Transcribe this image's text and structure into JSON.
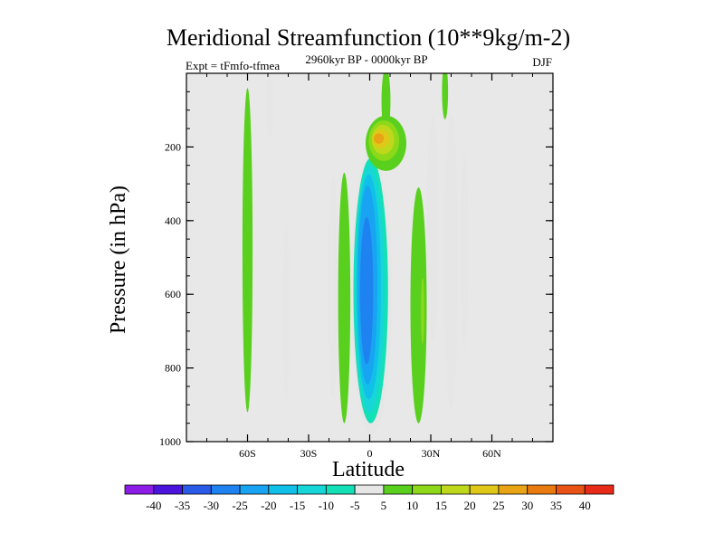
{
  "chart_data": {
    "type": "contour",
    "title": "Meridional Streamfunction (10**9kg/m-2)",
    "subtitle_left": "Expt = tFmfo-tfmea",
    "subtitle_center": "2960kyr BP - 0000kyr BP",
    "subtitle_right": "DJF",
    "xlabel": "Latitude",
    "ylabel": "Pressure (in hPa)",
    "xlim": [
      -90,
      90
    ],
    "ylim": [
      0,
      1000
    ],
    "y_inverted": true,
    "x_ticks": [
      {
        "value": -60,
        "label": "60S"
      },
      {
        "value": -30,
        "label": "30S"
      },
      {
        "value": 0,
        "label": "0"
      },
      {
        "value": 30,
        "label": "30N"
      },
      {
        "value": 60,
        "label": "60N"
      }
    ],
    "y_ticks": [
      {
        "value": 200,
        "label": "200"
      },
      {
        "value": 400,
        "label": "400"
      },
      {
        "value": 600,
        "label": "600"
      },
      {
        "value": 800,
        "label": "800"
      },
      {
        "value": 1000,
        "label": "1000"
      }
    ],
    "background_color": "#e8e8e8",
    "colorbar": {
      "levels": [
        "-40",
        "-35",
        "-30",
        "-25",
        "-20",
        "-15",
        "-10",
        "-5",
        "5",
        "10",
        "15",
        "20",
        "25",
        "30",
        "35",
        "40"
      ],
      "colors": [
        "#8c1ce6",
        "#4a14dc",
        "#2a5ae8",
        "#1e82f0",
        "#18a4f2",
        "#10c0e8",
        "#16d6d8",
        "#14e0b8",
        "#e6e6e6",
        "#5ad01e",
        "#8ed81a",
        "#c0d81c",
        "#e0c818",
        "#e8a414",
        "#e87a10",
        "#e85214",
        "#e82a18"
      ]
    },
    "regions": [
      {
        "name": "band-60s-positive",
        "value": 5,
        "cx": -60,
        "cy": 480,
        "rx": 2.5,
        "ry": 440
      },
      {
        "name": "band-48s-negative-upper",
        "value": -5,
        "cx": -49,
        "cy": 90,
        "rx": 2,
        "ry": 85
      },
      {
        "name": "band-40s-negative",
        "value": -5,
        "cx": -41,
        "cy": 650,
        "rx": 1.5,
        "ry": 235
      },
      {
        "name": "band-20s-negative",
        "value": -5,
        "cx": -18,
        "cy": 580,
        "rx": 2.5,
        "ry": 300
      },
      {
        "name": "band-13s-positive",
        "value": 5,
        "cx": -12.5,
        "cy": 610,
        "rx": 3,
        "ry": 340
      },
      {
        "name": "core-5",
        "value": -5,
        "cx": 1,
        "cy": 595,
        "rx": 10,
        "ry": 385
      },
      {
        "name": "core-10",
        "value": -10,
        "cx": 0.5,
        "cy": 590,
        "rx": 8.5,
        "ry": 360
      },
      {
        "name": "core-15",
        "value": -15,
        "cx": 0,
        "cy": 585,
        "rx": 7.2,
        "ry": 335
      },
      {
        "name": "core-20",
        "value": -20,
        "cx": -0.5,
        "cy": 580,
        "rx": 6,
        "ry": 305
      },
      {
        "name": "core-25",
        "value": -25,
        "cx": -1,
        "cy": 575,
        "rx": 4.8,
        "ry": 270
      },
      {
        "name": "core-30",
        "value": -30,
        "cx": -1.5,
        "cy": 590,
        "rx": 3.2,
        "ry": 200
      },
      {
        "name": "upper-jet-5",
        "value": 5,
        "cx": 8,
        "cy": 75,
        "rx": 2.2,
        "ry": 90
      },
      {
        "name": "upper-cell-5",
        "value": 5,
        "cx": 8,
        "cy": 190,
        "rx": 10,
        "ry": 75
      },
      {
        "name": "upper-cell-10",
        "value": 10,
        "cx": 7,
        "cy": 183,
        "rx": 7.5,
        "ry": 55
      },
      {
        "name": "upper-cell-15",
        "value": 15,
        "cx": 6.5,
        "cy": 180,
        "rx": 5.5,
        "ry": 40
      },
      {
        "name": "upper-cell-20",
        "value": 20,
        "cx": 5.5,
        "cy": 178,
        "rx": 4,
        "ry": 25
      },
      {
        "name": "upper-cell-25",
        "value": 25,
        "cx": 4.5,
        "cy": 177,
        "rx": 2.5,
        "ry": 14
      },
      {
        "name": "band-30n-positive",
        "value": 5,
        "cx": 24,
        "cy": 630,
        "rx": 4,
        "ry": 320
      },
      {
        "name": "band-30n-inner",
        "value": 10,
        "cx": 26,
        "cy": 645,
        "rx": 0.8,
        "ry": 90
      },
      {
        "name": "band-37n-negative",
        "value": -5,
        "cx": 31,
        "cy": 420,
        "rx": 3,
        "ry": 310
      },
      {
        "name": "band-40n-negative",
        "value": -5,
        "cx": 40,
        "cy": 510,
        "rx": 3.5,
        "ry": 400
      },
      {
        "name": "band-45n-negative",
        "value": -5,
        "cx": 46.5,
        "cy": 480,
        "rx": 2,
        "ry": 270
      },
      {
        "name": "top-37n-positive",
        "value": 5,
        "cx": 37,
        "cy": 50,
        "rx": 1.5,
        "ry": 75
      }
    ]
  }
}
